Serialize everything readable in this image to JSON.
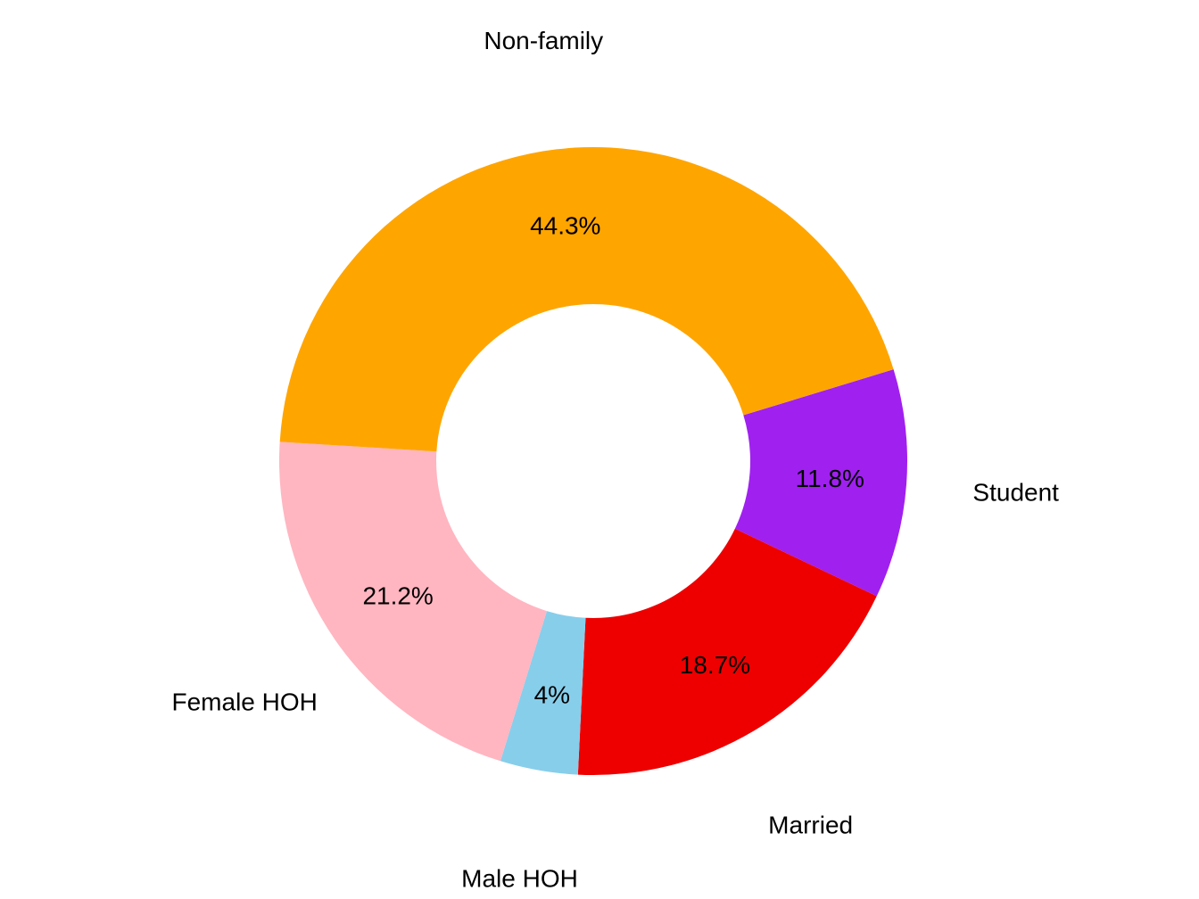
{
  "chart_data": {
    "type": "pie",
    "donut": true,
    "slices": [
      {
        "label": "Student",
        "value": 11.8,
        "value_label": "11.8%",
        "color": "#A020F0"
      },
      {
        "label": "Married",
        "value": 18.7,
        "value_label": "18.7%",
        "color": "#EE0000"
      },
      {
        "label": "Male HOH",
        "value": 4.0,
        "value_label": "4%",
        "color": "#87CEEB"
      },
      {
        "label": "Female HOH",
        "value": 21.2,
        "value_label": "21.2%",
        "color": "#FFB6C1"
      },
      {
        "label": "Non-family",
        "value": 44.3,
        "value_label": "44.3%",
        "color": "#FFA500"
      }
    ],
    "legend": "none"
  }
}
